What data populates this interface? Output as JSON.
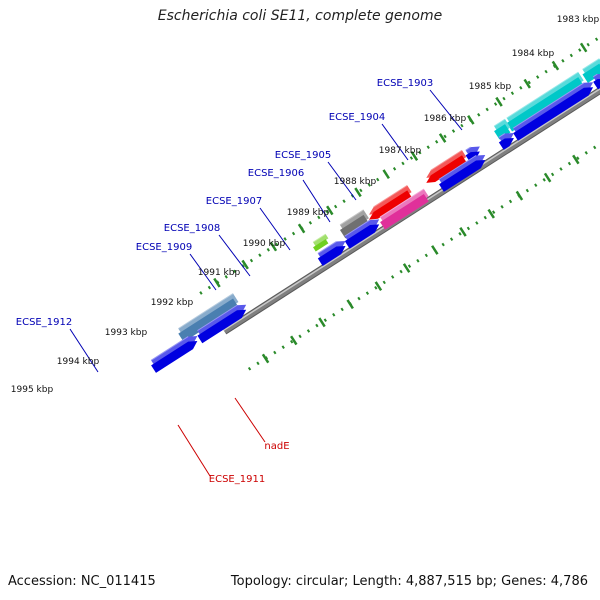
{
  "title": "Escherichia coli SE11, complete genome",
  "footer": {
    "accession": "Accession: NC_011415",
    "summary": "Topology: circular; Length: 4,887,515 bp; Genes: 4,786"
  },
  "ticks": [
    "1983 kbp",
    "1984 kbp",
    "1985 kbp",
    "1986 kbp",
    "1987 kbp",
    "1988 kbp",
    "1989 kbp",
    "1990 kbp",
    "1991 kbp",
    "1992 kbp",
    "1993 kbp",
    "1994 kbp",
    "1995 kbp"
  ],
  "genes": [
    {
      "id": "g1903",
      "label": "ECSE_1903",
      "color": "#0000b4"
    },
    {
      "id": "g1904",
      "label": "ECSE_1904",
      "color": "#0000b4"
    },
    {
      "id": "g1905",
      "label": "ECSE_1905",
      "color": "#0000b4"
    },
    {
      "id": "g1906",
      "label": "ECSE_1906",
      "color": "#0000b4"
    },
    {
      "id": "g1907",
      "label": "ECSE_1907",
      "color": "#0000b4"
    },
    {
      "id": "g1908",
      "label": "ECSE_1908",
      "color": "#0000b4"
    },
    {
      "id": "g1909",
      "label": "ECSE_1909",
      "color": "#0000b4"
    },
    {
      "id": "g1912",
      "label": "ECSE_1912",
      "color": "#0000b4"
    },
    {
      "id": "nadE",
      "label": "nadE",
      "color": "#cc0000"
    },
    {
      "id": "g1911",
      "label": "ECSE_1911",
      "color": "#cc0000"
    }
  ],
  "colors": {
    "cds_blue": "#0000e0",
    "cds_cyan": "#00c8c8",
    "cds_gray": "#707070",
    "cds_red": "#ee0000",
    "cds_pink": "#e0309a",
    "cds_green": "#70d020",
    "cds_steel": "#4a7fb0",
    "cds_purple": "#45408c",
    "backbone": "#808080",
    "ruler": "#2a8a2a"
  }
}
